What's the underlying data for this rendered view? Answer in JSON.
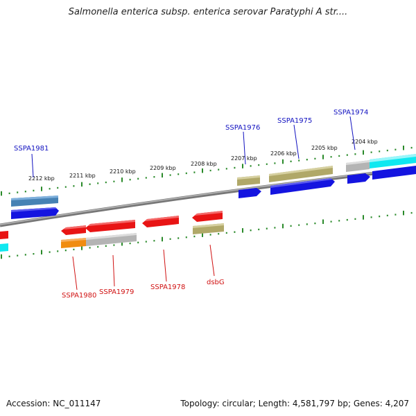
{
  "title": "Salmonella enterica subsp. enterica serovar Paratyphi A str....",
  "footer": {
    "accession": "Accession: NC_011147",
    "topology": "Topology: circular; Length: 4,581,797 bp; Genes: 4,207"
  },
  "scale_labels": [
    "2212 kbp",
    "2211 kbp",
    "2210 kbp",
    "2209 kbp",
    "2208 kbp",
    "2207 kbp",
    "2206 kbp",
    "2205 kbp",
    "2204 kbp"
  ],
  "gene_labels": {
    "forward": [
      "SSPA1981",
      "SSPA1976",
      "SSPA1975",
      "SSPA1974"
    ],
    "reverse": [
      "SSPA1980",
      "SSPA1979",
      "SSPA1978",
      "dsbG"
    ]
  },
  "colors": {
    "forward_label": "#1010c0",
    "reverse_label": "#d01010",
    "tick": "#2a8a2a",
    "backbone": "#808080",
    "cds_blue": "#1414e0",
    "cds_red": "#e81414",
    "cds_khaki": "#b0a868",
    "cds_cyan": "#10e8f0",
    "cds_gray": "#b4b4b4",
    "cds_orange": "#f08c10",
    "cds_steel": "#4682b4"
  }
}
